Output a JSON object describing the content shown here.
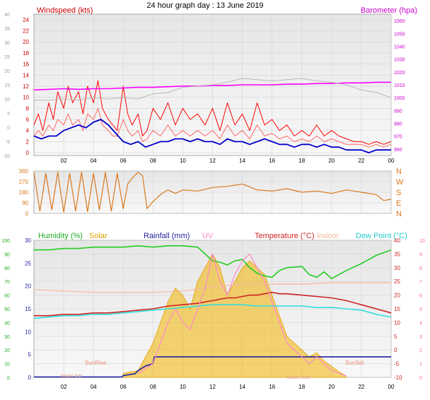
{
  "title": "24 hour graph day : 13 June 2019",
  "colors": {
    "wind": "#ff0000",
    "gust": "#ff0000",
    "avg_wind": "#0000cc",
    "barometer": "#ff00ff",
    "indoor_wind_ref": "#b8b8b8",
    "direction": "#d9781c",
    "humidity": "#22cc22",
    "solar": "#f0b400",
    "rainfall": "#2020a0",
    "uv": "#ff88cc",
    "temperature": "#cc2222",
    "indoor": "#f6b89a",
    "dewpoint": "#33dddd",
    "axis_left": "#888888"
  },
  "chart_data": [
    {
      "type": "line",
      "title": "",
      "labels": {
        "left": "Windspeed (kts)",
        "right": "Barometer (hpa)"
      },
      "x_ticks": [
        "02",
        "04",
        "06",
        "08",
        "10",
        "12",
        "14",
        "16",
        "18",
        "20",
        "22",
        "00"
      ],
      "y_left_ticks": [
        0,
        2,
        4,
        6,
        8,
        10,
        12,
        14,
        16,
        18,
        20,
        22,
        24
      ],
      "y_left_outer_ticks": [
        -10,
        -5,
        0,
        5,
        10,
        15,
        20,
        25,
        30,
        35,
        40
      ],
      "y_right_ticks": [
        980,
        990,
        1000,
        1010,
        1020,
        1030,
        1040,
        1050
      ],
      "y_right_inner_ticks": [
        960,
        970,
        980,
        990,
        1000,
        1010,
        1020,
        1030,
        1040,
        1050,
        1060
      ],
      "xlim": [
        0,
        24
      ],
      "ylim": [
        -0.5,
        25
      ],
      "series": [
        {
          "role": "gust",
          "x": [
            0,
            0.3,
            0.6,
            1,
            1.3,
            1.6,
            2,
            2.3,
            2.6,
            3,
            3.3,
            3.6,
            4,
            4.3,
            4.6,
            5,
            5.3,
            5.6,
            6,
            6.3,
            6.6,
            7,
            7.3,
            7.6,
            8,
            8.5,
            9,
            9.5,
            10,
            10.5,
            11,
            11.5,
            12,
            12.5,
            13,
            13.5,
            14,
            14.5,
            15,
            15.5,
            16,
            16.5,
            17,
            17.5,
            18,
            18.5,
            19,
            19.5,
            20,
            20.5,
            21,
            21.5,
            22,
            22.5,
            23,
            23.5,
            24
          ],
          "values": [
            5,
            7,
            4,
            9,
            6,
            11,
            8,
            12,
            9,
            11,
            7,
            12,
            9,
            13,
            8,
            6,
            5,
            4,
            12,
            7,
            5,
            7,
            3,
            4,
            8,
            6,
            9,
            5,
            8,
            6,
            7,
            5,
            8,
            4,
            9,
            5,
            7,
            4,
            9,
            5,
            6,
            4,
            5,
            3,
            4,
            3,
            5,
            3,
            4,
            3,
            2.5,
            2,
            2,
            1.5,
            2,
            1.5,
            2
          ]
        },
        {
          "role": "wind",
          "x": [
            0,
            0.3,
            0.6,
            1,
            1.3,
            1.6,
            2,
            2.3,
            2.6,
            3,
            3.3,
            3.6,
            4,
            4.3,
            4.6,
            5,
            5.3,
            5.6,
            6,
            6.3,
            6.6,
            7,
            7.3,
            7.6,
            8,
            8.5,
            9,
            9.5,
            10,
            10.5,
            11,
            11.5,
            12,
            12.5,
            13,
            13.5,
            14,
            14.5,
            15,
            15.5,
            16,
            16.5,
            17,
            17.5,
            18,
            18.5,
            19,
            19.5,
            20,
            20.5,
            21,
            21.5,
            22,
            22.5,
            23,
            23.5,
            24
          ],
          "values": [
            3,
            4,
            3,
            5,
            4,
            6,
            5,
            7,
            5,
            6,
            4,
            7,
            6,
            8,
            5,
            4,
            3,
            3,
            6,
            4,
            3,
            4,
            2,
            2.5,
            4,
            3,
            5,
            3,
            4,
            3,
            4,
            3,
            4,
            2.5,
            5,
            3,
            4,
            2.5,
            5,
            3,
            3.5,
            2.5,
            3,
            2,
            2.5,
            2,
            3,
            2,
            2.5,
            2,
            1.5,
            1.5,
            1.5,
            1,
            1.5,
            1,
            1.5
          ]
        },
        {
          "role": "avg_wind",
          "x": [
            0,
            0.5,
            1,
            1.5,
            2,
            2.5,
            3,
            3.5,
            4,
            4.5,
            5,
            5.5,
            6,
            6.5,
            7,
            7.5,
            8,
            8.5,
            9,
            9.5,
            10,
            10.5,
            11,
            11.5,
            12,
            12.5,
            13,
            13.5,
            14,
            14.5,
            15,
            15.5,
            16,
            16.5,
            17,
            17.5,
            18,
            18.5,
            19,
            19.5,
            20,
            20.5,
            21,
            21.5,
            22,
            22.5,
            23,
            23.5,
            24
          ],
          "values": [
            3,
            2.5,
            3,
            3,
            4,
            4.5,
            5,
            4.5,
            5.5,
            6,
            5,
            3.5,
            2,
            1.5,
            2,
            1,
            1.5,
            2,
            2,
            2.5,
            2.5,
            2,
            2.5,
            2,
            2,
            1.5,
            2.5,
            2,
            2,
            1.5,
            2,
            2.5,
            2,
            1.5,
            1.5,
            1,
            1.5,
            1.5,
            1,
            1.5,
            1,
            1,
            0.5,
            0.5,
            0.5,
            0,
            0.5,
            0.5,
            0.5
          ]
        },
        {
          "role": "barometer",
          "axis": "right",
          "x": [
            0,
            1,
            2,
            3,
            4,
            5,
            6,
            7,
            8,
            9,
            10,
            11,
            12,
            13,
            14,
            15,
            16,
            17,
            18,
            19,
            20,
            21,
            22,
            23,
            24
          ],
          "values": [
            1006,
            1006.5,
            1007,
            1006.5,
            1007,
            1007,
            1007.5,
            1008,
            1008,
            1008.5,
            1009,
            1009,
            1009.5,
            1009.5,
            1010,
            1010,
            1010,
            1010.5,
            1010.5,
            1011,
            1011,
            1011.5,
            1011.5,
            1012,
            1012
          ]
        },
        {
          "role": "indoor_wind_ref",
          "axis": "right",
          "x": [
            0,
            1,
            2,
            3,
            4,
            5,
            6,
            7,
            8,
            9,
            10,
            11,
            12,
            13,
            14,
            15,
            16,
            17,
            18,
            19,
            20,
            21,
            22,
            23,
            24
          ],
          "values": [
            998,
            998,
            999,
            998,
            1000,
            999,
            1000,
            999,
            1003,
            1004,
            1008,
            1009,
            1010,
            1012,
            1015,
            1014,
            1013,
            1014,
            1015,
            1013,
            1012,
            1010,
            1006,
            1004,
            1000
          ]
        }
      ]
    },
    {
      "type": "line",
      "title": "",
      "y_left_ticks": [
        0,
        90,
        180,
        270,
        360
      ],
      "y_right_labels": [
        "N",
        "W",
        "S",
        "E",
        "N"
      ],
      "xlim": [
        0,
        24
      ],
      "ylim": [
        0,
        360
      ],
      "series": [
        {
          "role": "direction",
          "x": [
            0,
            0.4,
            0.8,
            1.2,
            1.6,
            2,
            2.4,
            2.8,
            3.2,
            3.6,
            4,
            4.4,
            4.8,
            5.2,
            5.6,
            6,
            6.3,
            6.6,
            7,
            7.3,
            7.6,
            8,
            8.5,
            9,
            9.5,
            10,
            11,
            12,
            13,
            14,
            15,
            16,
            17,
            18,
            19,
            20,
            21,
            22,
            23,
            23.5,
            24
          ],
          "values": [
            350,
            20,
            340,
            30,
            350,
            10,
            340,
            20,
            350,
            15,
            340,
            30,
            350,
            20,
            340,
            40,
            250,
            300,
            350,
            320,
            40,
            100,
            160,
            200,
            170,
            200,
            190,
            220,
            230,
            250,
            200,
            190,
            210,
            180,
            190,
            170,
            200,
            180,
            160,
            110,
            120
          ]
        }
      ]
    },
    {
      "type": "line",
      "title": "",
      "labels": {
        "humidity": "Humidity (%)",
        "solar": "Solar",
        "rainfall": "Rainfall (mm)",
        "uv": "UV",
        "temperature": "Temperature (°C)",
        "indoor": "Indoor",
        "dewpoint": "Dew Point (°C)"
      },
      "markers": {
        "sunrise": "SunRise",
        "sunset": "SunSet",
        "moonset": "Moon Set",
        "moonrise": "Moon Rise"
      },
      "x_ticks": [
        "02",
        "04",
        "06",
        "08",
        "10",
        "12",
        "14",
        "16",
        "18",
        "20",
        "22",
        "00"
      ],
      "y_humidity_ticks": [
        0,
        10,
        20,
        30,
        40,
        50,
        60,
        70,
        80,
        90,
        100
      ],
      "y_rain_ticks": [
        0,
        5,
        10,
        15,
        20,
        25,
        30
      ],
      "y_temp_ticks": [
        -10,
        -5,
        0,
        5,
        10,
        15,
        20,
        25,
        30,
        35,
        40
      ],
      "y_uv_ticks": [
        0,
        1,
        2,
        3,
        4,
        5,
        6,
        7,
        8,
        9,
        10
      ],
      "xlim": [
        0,
        24
      ],
      "series": [
        {
          "role": "humidity",
          "unit": "%",
          "x": [
            0,
            1,
            2,
            3,
            4,
            5,
            6,
            7,
            8,
            9,
            10,
            11,
            12,
            12.5,
            13,
            13.5,
            14,
            14.5,
            15,
            15.5,
            16,
            16.5,
            17,
            18,
            18.5,
            19,
            19.5,
            20,
            21,
            22,
            23,
            24
          ],
          "values": [
            93,
            93,
            94,
            94,
            95,
            95,
            95,
            96,
            95,
            96,
            96,
            95,
            85,
            84,
            82,
            85,
            86,
            80,
            76,
            74,
            73,
            78,
            80,
            81,
            75,
            73,
            77,
            72,
            78,
            83,
            89,
            93
          ]
        },
        {
          "role": "temperature",
          "unit": "°C",
          "x": [
            0,
            1,
            2,
            3,
            4,
            5,
            6,
            7,
            8,
            9,
            10,
            11,
            12,
            12.5,
            13,
            13.5,
            14,
            14.5,
            15,
            15.5,
            16,
            16.5,
            17,
            18,
            19,
            20,
            21,
            22,
            23,
            24
          ],
          "values": [
            12.5,
            12.5,
            13,
            13,
            13.5,
            13.5,
            14,
            14.5,
            15,
            16,
            16.5,
            17,
            18,
            18.5,
            19,
            19,
            19.5,
            20,
            20,
            20.5,
            21,
            20.5,
            20.5,
            20,
            19.5,
            19,
            18,
            16.5,
            15,
            13.5
          ]
        },
        {
          "role": "dewpoint",
          "unit": "°C",
          "x": [
            0,
            1,
            2,
            3,
            4,
            5,
            6,
            7,
            8,
            9,
            10,
            11,
            12,
            13,
            14,
            15,
            16,
            17,
            18,
            19,
            20,
            21,
            22,
            23,
            24
          ],
          "values": [
            11.5,
            12,
            12.5,
            12.5,
            13,
            13,
            13.5,
            14,
            14.5,
            15,
            15.5,
            16,
            16.5,
            16.5,
            16.5,
            16,
            16,
            16,
            16,
            15.5,
            15.5,
            15,
            14.5,
            13,
            12
          ]
        },
        {
          "role": "indoor",
          "unit": "°C",
          "x": [
            0,
            2,
            4,
            6,
            8,
            10,
            12,
            14,
            16,
            18,
            20,
            22,
            24
          ],
          "values": [
            22,
            21.5,
            21,
            21,
            21,
            21.5,
            23,
            24,
            24,
            24,
            24.5,
            24.5,
            24.5
          ]
        },
        {
          "role": "rainfall",
          "unit": "mm",
          "x": [
            0,
            5.9,
            6,
            6.8,
            7,
            7.5,
            8,
            8.1,
            24
          ],
          "values": [
            0.1,
            0.1,
            0.4,
            0.8,
            1.5,
            2.5,
            3,
            4.5,
            4.5
          ]
        },
        {
          "role": "solar",
          "type": "area",
          "x": [
            6,
            7,
            7.5,
            8,
            8.5,
            9,
            9.5,
            10,
            10.5,
            11,
            11.5,
            12,
            12.5,
            13,
            13.5,
            14,
            14.5,
            15,
            15.5,
            16,
            16.5,
            17,
            17.5,
            18,
            18.5,
            19,
            19.5,
            20,
            20.5,
            21
          ],
          "values": [
            0.3,
            0.5,
            1.5,
            2.5,
            4,
            5.5,
            6.5,
            6,
            5,
            7,
            8,
            9,
            8,
            6,
            7,
            8,
            8.5,
            8,
            7.5,
            6,
            4.5,
            3,
            2.5,
            2,
            1.5,
            1.8,
            1.2,
            0.8,
            0.4,
            0.1
          ]
        },
        {
          "role": "uv",
          "type": "line",
          "x": [
            7,
            8,
            8.5,
            9,
            9.5,
            10,
            10.5,
            11,
            11.5,
            12,
            12.5,
            13,
            13.5,
            14,
            14.5,
            15,
            15.5,
            16,
            16.5,
            17,
            17.5,
            18,
            18.5,
            19,
            19.5,
            20,
            20.5,
            21
          ],
          "values": [
            0.3,
            1,
            2.5,
            4,
            5,
            4,
            3.5,
            5,
            6.5,
            9,
            7,
            6,
            7.5,
            8.5,
            9,
            8,
            7,
            5.5,
            4,
            2.5,
            2,
            1.5,
            1,
            1.5,
            1,
            0.5,
            0.3,
            0.1
          ]
        }
      ]
    }
  ]
}
